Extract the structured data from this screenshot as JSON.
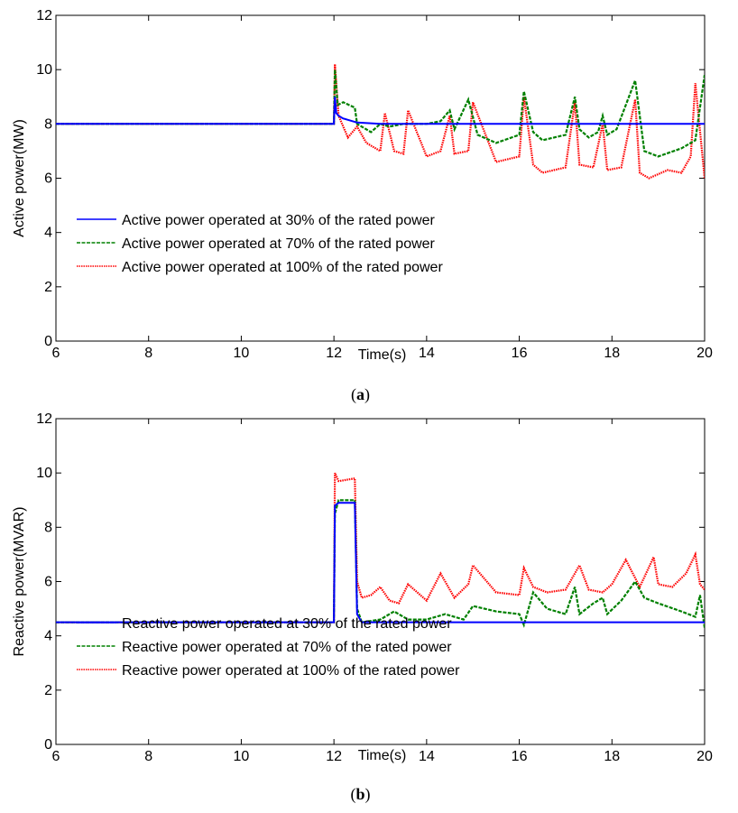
{
  "chart_data": [
    {
      "id": "a",
      "type": "line",
      "caption_open": "(",
      "caption_letter": "a",
      "caption_close": ")",
      "xlabel": "Time(s)",
      "ylabel": "Active power(MW)",
      "xlim": [
        6,
        20
      ],
      "ylim": [
        0,
        12
      ],
      "xticks": [
        6,
        8,
        10,
        12,
        14,
        16,
        18,
        20
      ],
      "yticks": [
        0,
        2,
        4,
        6,
        8,
        10,
        12
      ],
      "grid": false,
      "legend_position": "center-left",
      "series": [
        {
          "name": "Active power operated at 30% of the rated power",
          "color": "#0000ff",
          "style": "solid",
          "x": [
            6,
            12.0,
            12.02,
            12.05,
            12.1,
            12.2,
            12.3,
            12.4,
            12.5,
            13,
            14,
            15,
            16,
            17,
            18,
            19,
            20
          ],
          "y": [
            8.0,
            8.0,
            9.0,
            8.4,
            8.3,
            8.2,
            8.15,
            8.1,
            8.05,
            8.0,
            8.0,
            8.0,
            8.0,
            8.0,
            8.0,
            8.0,
            8.0
          ]
        },
        {
          "name": "Active power operated at 70% of the rated power",
          "color": "#008000",
          "style": "dashed",
          "x": [
            6,
            12.0,
            12.02,
            12.08,
            12.2,
            12.45,
            12.5,
            12.8,
            13.0,
            13.2,
            13.5,
            14.0,
            14.3,
            14.5,
            14.6,
            14.9,
            15.1,
            15.5,
            16.0,
            16.1,
            16.3,
            16.5,
            17.0,
            17.2,
            17.3,
            17.5,
            17.7,
            17.8,
            17.9,
            18.1,
            18.5,
            18.7,
            19.0,
            19.5,
            19.8,
            20.0
          ],
          "y": [
            8.0,
            8.0,
            10.0,
            8.7,
            8.8,
            8.6,
            8.0,
            7.7,
            8.0,
            7.9,
            8.0,
            8.0,
            8.1,
            8.5,
            7.8,
            8.9,
            7.6,
            7.3,
            7.6,
            9.2,
            7.7,
            7.4,
            7.6,
            9.0,
            7.8,
            7.5,
            7.7,
            8.3,
            7.6,
            7.8,
            9.6,
            7.0,
            6.8,
            7.1,
            7.4,
            9.8
          ]
        },
        {
          "name": "Active power operated at 100% of the rated power",
          "color": "#ff0000",
          "style": "dotted",
          "x": [
            6,
            12.0,
            12.02,
            12.1,
            12.3,
            12.5,
            12.7,
            13.0,
            13.1,
            13.3,
            13.5,
            13.6,
            14.0,
            14.3,
            14.5,
            14.6,
            14.9,
            15.0,
            15.5,
            16.0,
            16.1,
            16.3,
            16.5,
            17.0,
            17.2,
            17.3,
            17.6,
            17.8,
            17.9,
            18.2,
            18.5,
            18.6,
            18.8,
            19.2,
            19.5,
            19.7,
            19.8,
            20.0
          ],
          "y": [
            8.0,
            8.0,
            10.2,
            8.3,
            7.5,
            7.9,
            7.3,
            7.0,
            8.4,
            7.0,
            6.9,
            8.5,
            6.8,
            7.0,
            8.3,
            6.9,
            7.0,
            8.8,
            6.6,
            6.8,
            9.0,
            6.5,
            6.2,
            6.4,
            8.8,
            6.5,
            6.4,
            8.0,
            6.3,
            6.4,
            8.9,
            6.2,
            6.0,
            6.3,
            6.2,
            6.8,
            9.5,
            6.0
          ]
        }
      ]
    },
    {
      "id": "b",
      "type": "line",
      "caption_open": "(",
      "caption_letter": "b",
      "caption_close": ")",
      "xlabel": "Time(s)",
      "ylabel": "Reactive power(MVAR)",
      "xlim": [
        6,
        20
      ],
      "ylim": [
        0,
        12
      ],
      "xticks": [
        6,
        8,
        10,
        12,
        14,
        16,
        18,
        20
      ],
      "yticks": [
        0,
        2,
        4,
        6,
        8,
        10,
        12
      ],
      "grid": false,
      "legend_position": "center-left",
      "series": [
        {
          "name": "Reactive power operated at 30% of the rated power",
          "color": "#0000ff",
          "style": "solid",
          "x": [
            6,
            12.0,
            12.02,
            12.1,
            12.45,
            12.5,
            12.6,
            13,
            14,
            15,
            16,
            17,
            18,
            19,
            20
          ],
          "y": [
            4.5,
            4.5,
            8.8,
            8.9,
            8.9,
            4.8,
            4.5,
            4.5,
            4.5,
            4.5,
            4.5,
            4.5,
            4.5,
            4.5,
            4.5
          ]
        },
        {
          "name": "Reactive power operated at 70% of the rated power",
          "color": "#008000",
          "style": "dashed",
          "x": [
            6,
            12.0,
            12.02,
            12.1,
            12.45,
            12.5,
            12.6,
            13.0,
            13.3,
            13.6,
            14.0,
            14.4,
            14.8,
            15.0,
            15.5,
            16.0,
            16.1,
            16.3,
            16.6,
            17.0,
            17.2,
            17.3,
            17.6,
            17.8,
            17.9,
            18.2,
            18.5,
            18.7,
            19.0,
            19.5,
            19.8,
            19.9,
            20.0
          ],
          "y": [
            4.5,
            4.5,
            8.5,
            9.0,
            9.0,
            5.0,
            4.5,
            4.6,
            4.9,
            4.6,
            4.6,
            4.8,
            4.6,
            5.1,
            4.9,
            4.8,
            4.4,
            5.6,
            5.0,
            4.8,
            5.8,
            4.8,
            5.2,
            5.4,
            4.8,
            5.3,
            6.0,
            5.4,
            5.2,
            4.9,
            4.7,
            5.5,
            4.3
          ]
        },
        {
          "name": "Reactive power operated at 100% of the rated power",
          "color": "#ff0000",
          "style": "dotted",
          "x": [
            6,
            12.0,
            12.02,
            12.1,
            12.45,
            12.5,
            12.6,
            12.8,
            13.0,
            13.2,
            13.4,
            13.6,
            14.0,
            14.3,
            14.6,
            14.9,
            15.0,
            15.5,
            16.0,
            16.1,
            16.3,
            16.6,
            17.0,
            17.3,
            17.5,
            17.8,
            18.0,
            18.3,
            18.6,
            18.9,
            19.0,
            19.3,
            19.6,
            19.8,
            19.9,
            20.0
          ],
          "y": [
            4.5,
            4.5,
            10.0,
            9.7,
            9.8,
            6.0,
            5.4,
            5.5,
            5.8,
            5.3,
            5.2,
            5.9,
            5.3,
            6.3,
            5.4,
            5.9,
            6.6,
            5.6,
            5.5,
            6.5,
            5.8,
            5.6,
            5.7,
            6.6,
            5.7,
            5.6,
            5.9,
            6.8,
            5.8,
            6.9,
            5.9,
            5.8,
            6.3,
            7.0,
            5.9,
            5.7
          ]
        }
      ]
    }
  ]
}
